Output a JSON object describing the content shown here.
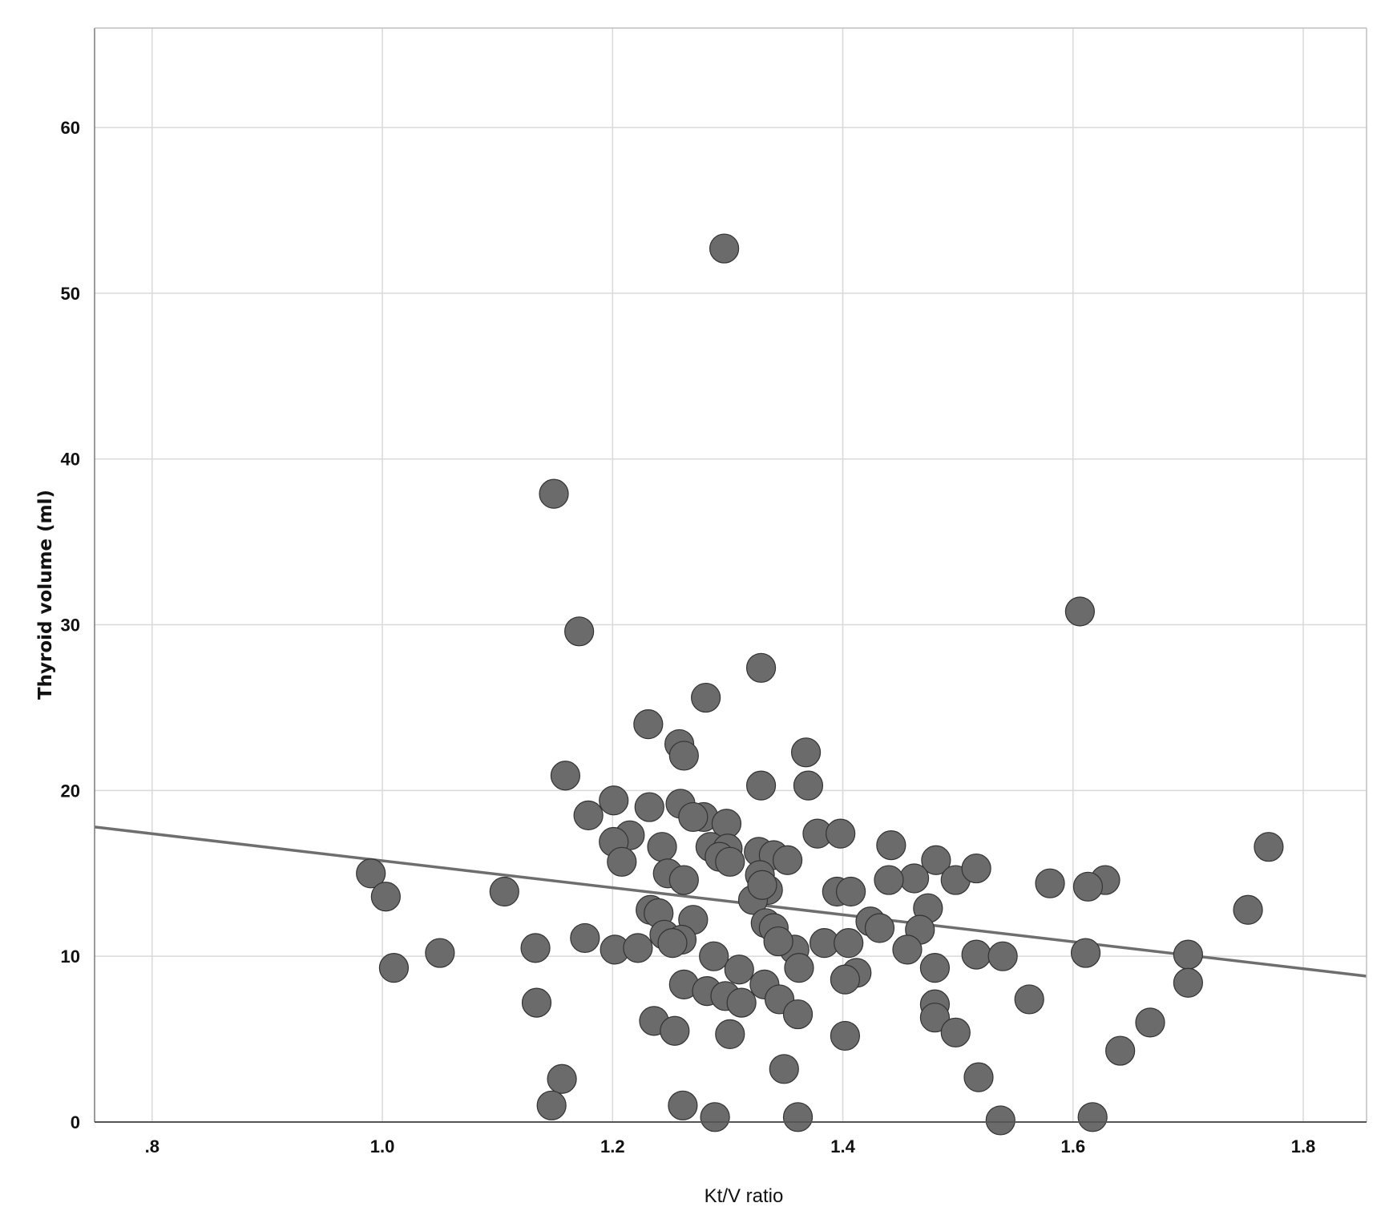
{
  "chart_data": {
    "type": "scatter",
    "title": "",
    "xlabel": "Kt/V ratio",
    "ylabel": "Thyroid volume (ml)",
    "xlim": [
      0.75,
      1.855
    ],
    "ylim": [
      0,
      66
    ],
    "x_ticks": [
      0.8,
      1.0,
      1.2,
      1.4,
      1.6,
      1.8
    ],
    "x_tick_labels": [
      ".8",
      "1.0",
      "1.2",
      "1.4",
      "1.6",
      "1.8"
    ],
    "y_ticks": [
      0,
      10,
      20,
      30,
      40,
      50,
      60
    ],
    "y_tick_labels": [
      "0",
      "10",
      "20",
      "30",
      "40",
      "50",
      "60"
    ],
    "grid": true,
    "legend": "none",
    "colors": {
      "point": "#6b6b6b",
      "point_edge": "#333333",
      "line": "#6e6e6e",
      "grid": "#d9d9d9"
    },
    "fit_line": {
      "x": [
        0.75,
        1.855
      ],
      "y": [
        17.8,
        8.8
      ]
    },
    "points": {
      "x": [
        1.297,
        1.149,
        1.171,
        1.606,
        1.329,
        1.281,
        1.231,
        1.258,
        1.262,
        1.368,
        1.159,
        1.37,
        1.329,
        1.201,
        1.179,
        1.232,
        1.259,
        1.279,
        1.299,
        1.215,
        1.27,
        1.378,
        1.398,
        1.201,
        1.243,
        1.442,
        1.285,
        1.327,
        1.3,
        1.208,
        1.293,
        1.302,
        1.34,
        1.352,
        1.77,
        1.481,
        1.462,
        1.498,
        1.516,
        0.99,
        1.248,
        1.262,
        1.58,
        1.628,
        1.613,
        1.44,
        1.328,
        1.106,
        1.003,
        1.335,
        1.395,
        1.407,
        1.322,
        1.752,
        1.33,
        1.474,
        1.233,
        1.24,
        1.424,
        1.27,
        1.333,
        1.34,
        1.432,
        1.467,
        1.176,
        1.245,
        1.384,
        1.26,
        1.405,
        1.252,
        1.133,
        1.202,
        1.222,
        1.456,
        1.358,
        1.344,
        1.611,
        1.05,
        1.7,
        1.516,
        1.539,
        1.288,
        1.01,
        1.362,
        1.412,
        1.31,
        1.48,
        1.402,
        1.7,
        1.262,
        1.332,
        1.282,
        1.298,
        1.562,
        1.345,
        1.312,
        1.134,
        1.48,
        1.361,
        1.667,
        1.236,
        1.254,
        1.48,
        1.498,
        1.302,
        1.402,
        1.641,
        1.349,
        1.156,
        1.518,
        1.147,
        1.261,
        1.289,
        1.361,
        1.537,
        1.617
      ],
      "y": [
        52.7,
        37.9,
        29.6,
        30.8,
        27.4,
        25.6,
        24.0,
        22.8,
        22.1,
        22.3,
        20.9,
        20.3,
        20.3,
        19.4,
        18.5,
        19.0,
        19.2,
        18.4,
        18.0,
        17.3,
        18.4,
        17.4,
        17.4,
        16.9,
        16.6,
        16.7,
        16.6,
        16.3,
        16.5,
        15.7,
        16.0,
        15.7,
        16.1,
        15.8,
        16.6,
        15.8,
        14.7,
        14.6,
        15.3,
        15.0,
        15.0,
        14.6,
        14.4,
        14.6,
        14.2,
        14.6,
        14.9,
        13.9,
        13.6,
        14.0,
        13.9,
        13.9,
        13.4,
        12.8,
        14.3,
        12.9,
        12.8,
        12.6,
        12.1,
        12.2,
        12.0,
        11.7,
        11.7,
        11.6,
        11.1,
        11.3,
        10.8,
        11.0,
        10.8,
        10.8,
        10.5,
        10.4,
        10.5,
        10.4,
        10.4,
        10.9,
        10.2,
        10.2,
        10.1,
        10.1,
        10.0,
        10.0,
        9.3,
        9.3,
        9.0,
        9.2,
        9.3,
        8.6,
        8.4,
        8.3,
        8.3,
        7.9,
        7.6,
        7.4,
        7.4,
        7.2,
        7.2,
        7.1,
        6.5,
        6.0,
        6.1,
        5.5,
        6.3,
        5.4,
        5.3,
        5.2,
        4.3,
        3.2,
        2.6,
        2.7,
        1.0,
        1.0,
        0.3,
        0.3,
        0.1,
        0.3
      ]
    }
  }
}
